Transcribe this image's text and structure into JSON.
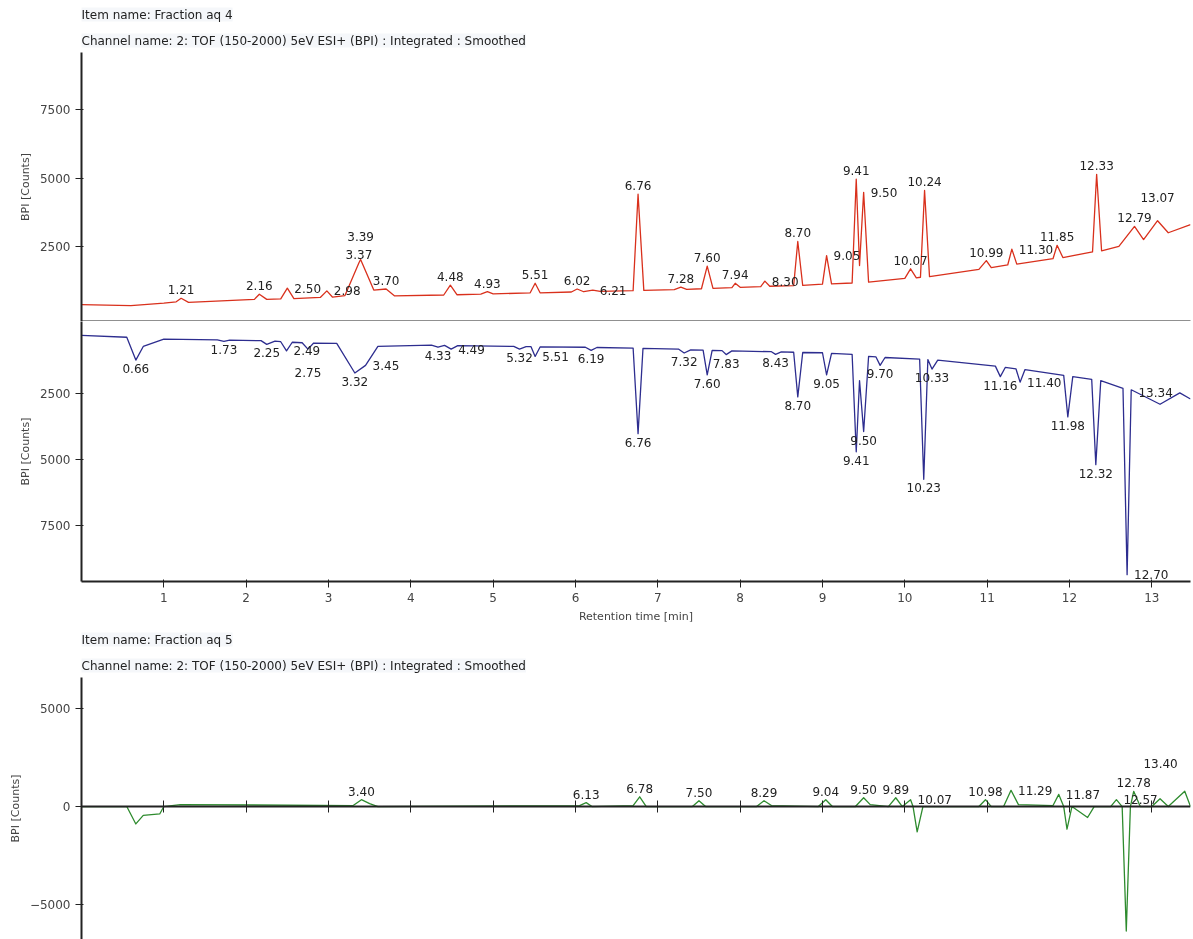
{
  "chart_data": [
    {
      "type": "line",
      "title": "Item name: Fraction aq 4",
      "subtitle": "Channel name: 2: TOF (150-2000) 5eV ESI+ (BPI) : Integrated : Smoothed",
      "ylabel": "BPI [Counts]",
      "xlim": [
        0,
        13.47
      ],
      "ylim": [
        -250,
        9600
      ],
      "yticks": [
        2500,
        5000,
        7500
      ],
      "tick_labels": "y",
      "grid": false,
      "series": [
        {
          "color": "#d9301c",
          "x": [
            0,
            0.6,
            1.0,
            1.15,
            1.21,
            1.3,
            2.1,
            2.16,
            2.25,
            2.42,
            2.5,
            2.58,
            2.9,
            2.98,
            3.05,
            3.2,
            3.37,
            3.39,
            3.55,
            3.7,
            3.8,
            4.4,
            4.48,
            4.56,
            4.85,
            4.93,
            5.0,
            5.45,
            5.51,
            5.57,
            5.95,
            6.02,
            6.1,
            6.21,
            6.3,
            6.7,
            6.76,
            6.83,
            7.2,
            7.28,
            7.35,
            7.53,
            7.6,
            7.67,
            7.9,
            7.94,
            8.0,
            8.25,
            8.3,
            8.36,
            8.65,
            8.7,
            8.76,
            9.0,
            9.05,
            9.11,
            9.36,
            9.41,
            9.45,
            9.5,
            9.56,
            10.0,
            10.07,
            10.14,
            10.19,
            10.24,
            10.3,
            10.9,
            10.99,
            11.05,
            11.25,
            11.3,
            11.36,
            11.8,
            11.85,
            11.92,
            12.28,
            12.33,
            12.39,
            12.6,
            12.79,
            12.9,
            13.07,
            13.2,
            13.47
          ],
          "values": [
            370,
            330,
            420,
            470,
            600,
            450,
            560,
            750,
            560,
            580,
            970,
            590,
            630,
            870,
            640,
            700,
            1900,
            2020,
            900,
            940,
            690,
            720,
            1080,
            730,
            750,
            840,
            760,
            800,
            1150,
            800,
            830,
            940,
            840,
            900,
            850,
            880,
            4410,
            890,
            920,
            1010,
            930,
            950,
            1780,
            960,
            990,
            1150,
            1000,
            1030,
            1230,
            1040,
            1060,
            2680,
            1070,
            1120,
            2160,
            1130,
            1160,
            4960,
            1800,
            4480,
            1190,
            1330,
            1680,
            1350,
            1370,
            4550,
            1390,
            1660,
            1980,
            1720,
            1820,
            2400,
            1850,
            2050,
            2540,
            2090,
            2300,
            5140,
            2340,
            2500,
            3230,
            2750,
            3440,
            3000,
            3300
          ]
        }
      ],
      "annotations": [
        {
          "text": "1.21",
          "x": 1.21,
          "y": 600
        },
        {
          "text": "2.16",
          "x": 2.16,
          "y": 750
        },
        {
          "text": "2.50",
          "x": 2.5,
          "y": 970
        },
        {
          "text": "2.98",
          "x": 2.98,
          "y": 870
        },
        {
          "text": "3.37",
          "x": 3.37,
          "y": 1900
        },
        {
          "text": "3.39",
          "x": 3.39,
          "y": 2020
        },
        {
          "text": "3.70",
          "x": 3.7,
          "y": 940
        },
        {
          "text": "4.48",
          "x": 4.48,
          "y": 1080
        },
        {
          "text": "4.93",
          "x": 4.93,
          "y": 840
        },
        {
          "text": "5.51",
          "x": 5.51,
          "y": 1150
        },
        {
          "text": "6.02",
          "x": 6.02,
          "y": 940
        },
        {
          "text": "6.21",
          "x": 6.21,
          "y": 900
        },
        {
          "text": "6.76",
          "x": 6.76,
          "y": 4410
        },
        {
          "text": "7.28",
          "x": 7.28,
          "y": 1010
        },
        {
          "text": "7.60",
          "x": 7.6,
          "y": 1780
        },
        {
          "text": "7.94",
          "x": 7.94,
          "y": 1150
        },
        {
          "text": "8.30",
          "x": 8.3,
          "y": 1230
        },
        {
          "text": "8.70",
          "x": 8.7,
          "y": 2680
        },
        {
          "text": "9.05",
          "x": 9.05,
          "y": 2160
        },
        {
          "text": "9.41",
          "x": 9.41,
          "y": 4960
        },
        {
          "text": "9.50",
          "x": 9.5,
          "y": 4480
        },
        {
          "text": "10.07",
          "x": 10.07,
          "y": 1680
        },
        {
          "text": "10.24",
          "x": 10.24,
          "y": 4550
        },
        {
          "text": "10.99",
          "x": 10.99,
          "y": 1980
        },
        {
          "text": "11.30",
          "x": 11.3,
          "y": 2400
        },
        {
          "text": "11.85",
          "x": 11.85,
          "y": 2540
        },
        {
          "text": "12.33",
          "x": 12.33,
          "y": 5140
        },
        {
          "text": "12.79",
          "x": 12.79,
          "y": 3230
        },
        {
          "text": "13.07",
          "x": 13.07,
          "y": 3440
        }
      ]
    },
    {
      "type": "line",
      "ylabel": "BPI [Counts]",
      "xlabel": "Retention time [min]",
      "xlim": [
        0,
        13.47
      ],
      "ylim": [
        9650,
        -250
      ],
      "xticks": [
        1,
        2,
        3,
        4,
        5,
        6,
        7,
        8,
        9,
        10,
        11,
        12,
        13
      ],
      "yticks": [
        2500,
        5000,
        7500
      ],
      "grid": false,
      "series": [
        {
          "color": "#2d2d8f",
          "x": [
            0,
            0.55,
            0.66,
            0.75,
            1.0,
            1.65,
            1.73,
            1.8,
            2.18,
            2.25,
            2.35,
            2.42,
            2.49,
            2.56,
            2.68,
            2.75,
            2.82,
            3.1,
            3.32,
            3.45,
            3.6,
            4.25,
            4.33,
            4.41,
            4.49,
            4.57,
            5.25,
            5.32,
            5.4,
            5.46,
            5.51,
            5.57,
            6.12,
            6.19,
            6.26,
            6.7,
            6.76,
            6.82,
            7.25,
            7.32,
            7.4,
            7.55,
            7.6,
            7.66,
            7.78,
            7.83,
            7.9,
            8.38,
            8.43,
            8.5,
            8.65,
            8.7,
            8.76,
            9.0,
            9.05,
            9.11,
            9.36,
            9.41,
            9.45,
            9.5,
            9.56,
            9.65,
            9.7,
            9.76,
            10.18,
            10.23,
            10.28,
            10.33,
            10.4,
            11.1,
            11.16,
            11.22,
            11.35,
            11.4,
            11.46,
            11.93,
            11.98,
            12.04,
            12.27,
            12.32,
            12.38,
            12.65,
            12.7,
            12.75,
            13.1,
            13.34,
            13.47
          ],
          "values": [
            280,
            350,
            1220,
            700,
            420,
            450,
            510,
            460,
            480,
            620,
            500,
            520,
            870,
            540,
            560,
            800,
            570,
            580,
            1710,
            1420,
            700,
            650,
            730,
            660,
            800,
            670,
            700,
            800,
            710,
            710,
            1080,
            720,
            730,
            850,
            740,
            760,
            4020,
            770,
            800,
            950,
            830,
            840,
            1780,
            850,
            860,
            1010,
            870,
            900,
            1000,
            910,
            920,
            2620,
            930,
            940,
            1780,
            960,
            1000,
            4710,
            2000,
            3940,
            1080,
            1100,
            1420,
            1120,
            1180,
            5760,
            1200,
            1560,
            1220,
            1450,
            1850,
            1500,
            1550,
            2060,
            1580,
            1800,
            3380,
            1850,
            1950,
            5200,
            2000,
            2300,
            9390,
            2350,
            2900,
            2470,
            2700
          ]
        }
      ],
      "annotations": [
        {
          "text": "0.66",
          "x": 0.66,
          "y": 1220
        },
        {
          "text": "1.73",
          "x": 1.73,
          "y": 510
        },
        {
          "text": "2.25",
          "x": 2.25,
          "y": 620
        },
        {
          "text": "2.49",
          "x": 2.49,
          "y": 870
        },
        {
          "text": "2.75",
          "x": 2.75,
          "y": 800
        },
        {
          "text": "3.32",
          "x": 3.32,
          "y": 1710
        },
        {
          "text": "3.45",
          "x": 3.45,
          "y": 1420
        },
        {
          "text": "4.33",
          "x": 4.33,
          "y": 730
        },
        {
          "text": "4.49",
          "x": 4.49,
          "y": 800
        },
        {
          "text": "5.32",
          "x": 5.32,
          "y": 800
        },
        {
          "text": "5.51",
          "x": 5.51,
          "y": 1080
        },
        {
          "text": "6.19",
          "x": 6.19,
          "y": 850
        },
        {
          "text": "6.76",
          "x": 6.76,
          "y": 4020
        },
        {
          "text": "7.32",
          "x": 7.32,
          "y": 950
        },
        {
          "text": "7.60",
          "x": 7.6,
          "y": 1780
        },
        {
          "text": "7.83",
          "x": 7.83,
          "y": 1010
        },
        {
          "text": "8.43",
          "x": 8.43,
          "y": 1000
        },
        {
          "text": "8.70",
          "x": 8.7,
          "y": 2620
        },
        {
          "text": "9.05",
          "x": 9.05,
          "y": 1780
        },
        {
          "text": "9.41",
          "x": 9.41,
          "y": 4710
        },
        {
          "text": "9.50",
          "x": 9.5,
          "y": 3940
        },
        {
          "text": "9.70",
          "x": 9.7,
          "y": 1420
        },
        {
          "text": "10.23",
          "x": 10.23,
          "y": 5760
        },
        {
          "text": "10.33",
          "x": 10.33,
          "y": 1560
        },
        {
          "text": "11.16",
          "x": 11.16,
          "y": 1850
        },
        {
          "text": "11.40",
          "x": 11.4,
          "y": 2060
        },
        {
          "text": "11.98",
          "x": 11.98,
          "y": 3380
        },
        {
          "text": "12.32",
          "x": 12.32,
          "y": 5200
        },
        {
          "text": "12.70",
          "x": 12.7,
          "y": 9390
        },
        {
          "text": "13.34",
          "x": 13.34,
          "y": 2470
        }
      ]
    },
    {
      "type": "line",
      "title": "Item name: Fraction aq 5",
      "subtitle": "Channel name: 2: TOF (150-2000) 5eV ESI+ (BPI) : Integrated : Smoothed",
      "ylabel": "BPI [Counts]",
      "xlim": [
        0,
        13.47
      ],
      "ylim": [
        -6800,
        6600
      ],
      "xticks": [
        {
          "value": 1,
          "label": null
        },
        {
          "value": 2,
          "label": null
        },
        {
          "value": 3,
          "label": null
        },
        {
          "value": 4,
          "label": null
        },
        {
          "value": 5,
          "label": null
        },
        {
          "value": 6,
          "label": null
        },
        {
          "value": 7,
          "label": null
        },
        {
          "value": 8,
          "label": null
        },
        {
          "value": 9,
          "label": null
        },
        {
          "value": 10,
          "label": null
        },
        {
          "value": 11,
          "label": null
        },
        {
          "value": 12,
          "label": null
        },
        {
          "value": 13,
          "label": null
        }
      ],
      "yticks": [
        -5000,
        0,
        5000
      ],
      "tick_labels": "y",
      "grid": false,
      "ref_lines": [
        {
          "axis": "y",
          "value": 0,
          "color": "#222222"
        }
      ],
      "series": [
        {
          "color": "#2e8b2e",
          "x": [
            0,
            0.55,
            0.66,
            0.75,
            0.95,
            1.0,
            1.2,
            3.3,
            3.4,
            3.5,
            3.6,
            6.05,
            6.13,
            6.2,
            6.7,
            6.78,
            6.86,
            7.42,
            7.5,
            7.58,
            8.2,
            8.29,
            8.38,
            8.95,
            9.04,
            9.12,
            9.4,
            9.5,
            9.58,
            9.8,
            9.89,
            9.97,
            10.07,
            10.1,
            10.15,
            10.22,
            10.9,
            10.98,
            11.05,
            11.2,
            11.29,
            11.38,
            11.8,
            11.87,
            11.93,
            11.97,
            12.03,
            12.22,
            12.3,
            12.5,
            12.57,
            12.64,
            12.69,
            12.74,
            12.78,
            12.86,
            13.0,
            13.1,
            13.2,
            13.4,
            13.47
          ],
          "values": [
            0,
            0,
            -890,
            -450,
            -380,
            0,
            100,
            50,
            350,
            150,
            0,
            50,
            200,
            0,
            50,
            500,
            0,
            0,
            300,
            0,
            0,
            300,
            50,
            0,
            350,
            0,
            0,
            450,
            100,
            0,
            450,
            0,
            350,
            0,
            -1300,
            0,
            0,
            350,
            0,
            0,
            830,
            100,
            50,
            620,
            0,
            -1160,
            0,
            -560,
            0,
            0,
            350,
            0,
            -6370,
            0,
            780,
            0,
            0,
            400,
            0,
            780,
            0
          ]
        }
      ],
      "annotations": [
        {
          "text": "3.40",
          "x": 3.4,
          "y": 350
        },
        {
          "text": "6.13",
          "x": 6.13,
          "y": 200
        },
        {
          "text": "6.78",
          "x": 6.78,
          "y": 500
        },
        {
          "text": "7.50",
          "x": 7.5,
          "y": 300
        },
        {
          "text": "8.29",
          "x": 8.29,
          "y": 300
        },
        {
          "text": "9.04",
          "x": 9.04,
          "y": 350
        },
        {
          "text": "9.50",
          "x": 9.5,
          "y": 450
        },
        {
          "text": "9.89",
          "x": 9.89,
          "y": 450
        },
        {
          "text": "10.07",
          "x": 10.07,
          "y": 350
        },
        {
          "text": "10.98",
          "x": 10.98,
          "y": 350
        },
        {
          "text": "11.29",
          "x": 11.29,
          "y": 830
        },
        {
          "text": "11.87",
          "x": 11.87,
          "y": 620
        },
        {
          "text": "12.57",
          "x": 12.57,
          "y": 350
        },
        {
          "text": "12.78",
          "x": 12.78,
          "y": 780
        },
        {
          "text": "13.40",
          "x": 13.4,
          "y": 780
        }
      ]
    }
  ]
}
